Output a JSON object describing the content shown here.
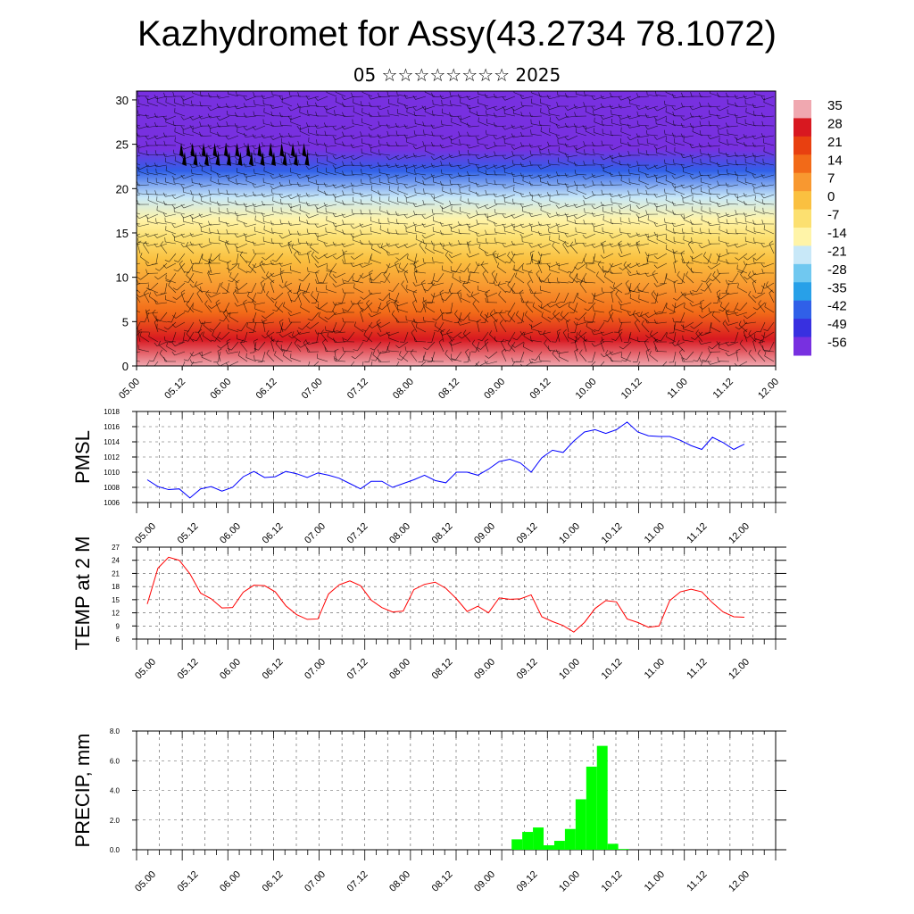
{
  "page": {
    "title": "Kazhydromet for Assy(43.2734 78.1072)",
    "subtitle": "05 ☆☆☆☆☆☆☆☆ 2025"
  },
  "time_labels": [
    "05.00",
    "05.12",
    "06.00",
    "06.12",
    "07.00",
    "07.12",
    "08.00",
    "08.12",
    "09.00",
    "09.12",
    "10.00",
    "10.12",
    "11.00",
    "11.12",
    "12.00"
  ],
  "chart_data": [
    {
      "type": "heatmap",
      "name": "temperature-wind-cross-section",
      "title": "",
      "ylabel": "",
      "ylim": [
        0,
        31
      ],
      "yticks": [
        0,
        5,
        10,
        15,
        20,
        25,
        30
      ],
      "x": [
        "05.00",
        "05.12",
        "06.00",
        "06.12",
        "07.00",
        "07.12",
        "08.00",
        "08.12",
        "09.00",
        "09.12",
        "10.00",
        "10.12",
        "11.00",
        "11.12",
        "12.00"
      ],
      "colorbar": {
        "labels": [
          35,
          28,
          21,
          14,
          7,
          0,
          -7,
          -14,
          -21,
          -28,
          -35,
          -42,
          -49,
          -56
        ],
        "colors": [
          "#f0a8b0",
          "#d81820",
          "#e84010",
          "#f26a18",
          "#f89830",
          "#fac040",
          "#fce070",
          "#fff4a8",
          "#c8e8f8",
          "#70c8f0",
          "#28a0e8",
          "#3060e8",
          "#3830e0",
          "#7830e0"
        ]
      },
      "temperature_profile": {
        "heights": [
          0,
          3,
          6,
          9,
          12,
          14.5,
          16.5,
          19,
          22,
          24.5,
          26.5,
          31
        ],
        "values": [
          34,
          25,
          16,
          8,
          0,
          -5,
          -12,
          -24,
          -40,
          -56,
          -60,
          -56
        ]
      },
      "overlay": "wind barbs"
    },
    {
      "type": "line",
      "name": "PMSL",
      "ylabel": "PMSL",
      "ylim": [
        1006,
        1018
      ],
      "yticks": [
        1006,
        1008,
        1010,
        1012,
        1014,
        1016,
        1018
      ],
      "color": "#0000ff",
      "x_hours": [
        0,
        3,
        6,
        9,
        12,
        15,
        18,
        21,
        24,
        27,
        30,
        33,
        36,
        39,
        42,
        45,
        48,
        51,
        54,
        57,
        60,
        63,
        66,
        69,
        72,
        75,
        78,
        81,
        84,
        87,
        90,
        93,
        96,
        99,
        102,
        105,
        108,
        111,
        114,
        117,
        120,
        123,
        126,
        129,
        132,
        135,
        138,
        141,
        144,
        147,
        150,
        153,
        156,
        159,
        162,
        165,
        168
      ],
      "values": [
        1009.0,
        1008.1,
        1007.7,
        1007.8,
        1006.6,
        1007.8,
        1008.1,
        1007.5,
        1008.0,
        1009.4,
        1010.1,
        1009.3,
        1009.4,
        1010.1,
        1009.8,
        1009.3,
        1009.9,
        1009.6,
        1009.2,
        1008.5,
        1007.8,
        1008.8,
        1008.8,
        1008.0,
        1008.5,
        1009.0,
        1009.6,
        1008.9,
        1008.6,
        1010.0,
        1010.0,
        1009.6,
        1010.4,
        1011.4,
        1011.7,
        1011.2,
        1010.0,
        1011.9,
        1012.9,
        1012.6,
        1014.1,
        1015.3,
        1015.6,
        1015.1,
        1015.6,
        1016.6,
        1015.3,
        1014.8,
        1014.7,
        1014.7,
        1014.2,
        1013.5,
        1013.0,
        1014.6,
        1013.9,
        1013.0,
        1013.7
      ]
    },
    {
      "type": "line",
      "name": "TEMP at 2 M",
      "ylabel": "TEMP at 2 M",
      "ylim": [
        6,
        27
      ],
      "yticks": [
        6,
        9,
        12,
        15,
        18,
        21,
        24,
        27
      ],
      "color": "#ff0000",
      "x_hours": [
        0,
        3,
        6,
        9,
        12,
        15,
        18,
        21,
        24,
        27,
        30,
        33,
        36,
        39,
        42,
        45,
        48,
        51,
        54,
        57,
        60,
        63,
        66,
        69,
        72,
        75,
        78,
        81,
        84,
        87,
        90,
        93,
        96,
        99,
        102,
        105,
        108,
        111,
        114,
        117,
        120,
        123,
        126,
        129,
        132,
        135,
        138,
        141,
        144,
        147,
        150,
        153,
        156,
        159,
        162,
        165,
        168
      ],
      "values": [
        14.0,
        22.2,
        24.7,
        24.0,
        20.9,
        16.5,
        15.2,
        13.1,
        13.2,
        16.7,
        18.3,
        18.2,
        16.8,
        13.6,
        11.6,
        10.5,
        10.6,
        16.3,
        18.4,
        19.3,
        18.2,
        14.9,
        13.2,
        12.2,
        12.4,
        17.3,
        18.5,
        19.0,
        17.6,
        15.2,
        12.3,
        13.5,
        12.0,
        15.4,
        15.1,
        15.2,
        16.1,
        11.1,
        10.0,
        9.1,
        7.6,
        9.8,
        13.0,
        14.8,
        14.5,
        10.6,
        9.8,
        8.7,
        9.0,
        14.8,
        16.8,
        17.4,
        16.8,
        14.3,
        12.2,
        11.1,
        11.0
      ]
    },
    {
      "type": "bar",
      "name": "PRECIP, mm",
      "ylabel": "PRECIP, mm",
      "ylim": [
        0,
        8
      ],
      "yticks": [
        "0.0",
        "2.0",
        "4.0",
        "6.0",
        "8.0"
      ],
      "color": "#00ff00",
      "x_hours": [
        102,
        105,
        108,
        111,
        114,
        117,
        120,
        123,
        126,
        129,
        132
      ],
      "values": [
        0.7,
        1.2,
        1.5,
        0.3,
        0.6,
        1.4,
        3.4,
        5.6,
        7.0,
        0.4,
        0.05
      ]
    }
  ]
}
